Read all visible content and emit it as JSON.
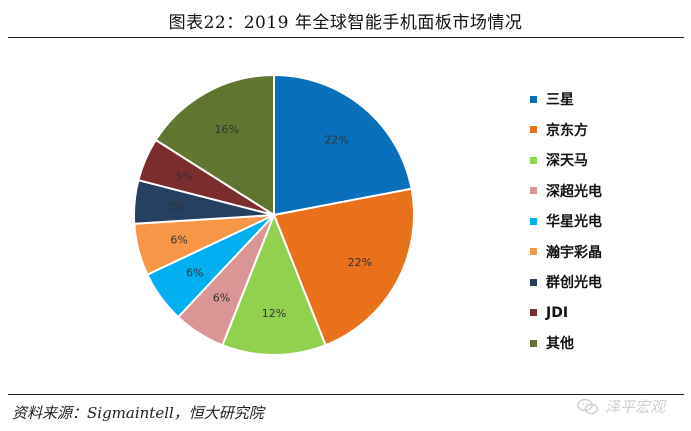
{
  "title": "图表22：2019 年全球智能手机面板市场情况",
  "source": "资料来源：Sigmaintell，恒大研究院",
  "watermark": "泽平宏观",
  "chart_data": {
    "type": "pie",
    "start_angle": "12 o'clock",
    "direction": "clockwise",
    "legend_position": "right",
    "categories": [
      "三星",
      "京东方",
      "深天马",
      "深超光电",
      "华星光电",
      "瀚宇彩晶",
      "群创光电",
      "JDI",
      "其他"
    ],
    "values": [
      22,
      22,
      12,
      6,
      6,
      6,
      5,
      5,
      16
    ],
    "labels": [
      "22%",
      "22%",
      "12%",
      "6%",
      "6%",
      "6%",
      "5%",
      "5%",
      "16%"
    ],
    "colors": [
      "#0a6fba",
      "#e9711c",
      "#92d050",
      "#d99694",
      "#00b0f0",
      "#f79646",
      "#254061",
      "#7b2c2c",
      "#5f7530"
    ],
    "label_colors": [
      "#333333",
      "#333333",
      "#333333",
      "#333333",
      "#333333",
      "#333333",
      "#333333",
      "#333333",
      "#333333"
    ]
  }
}
